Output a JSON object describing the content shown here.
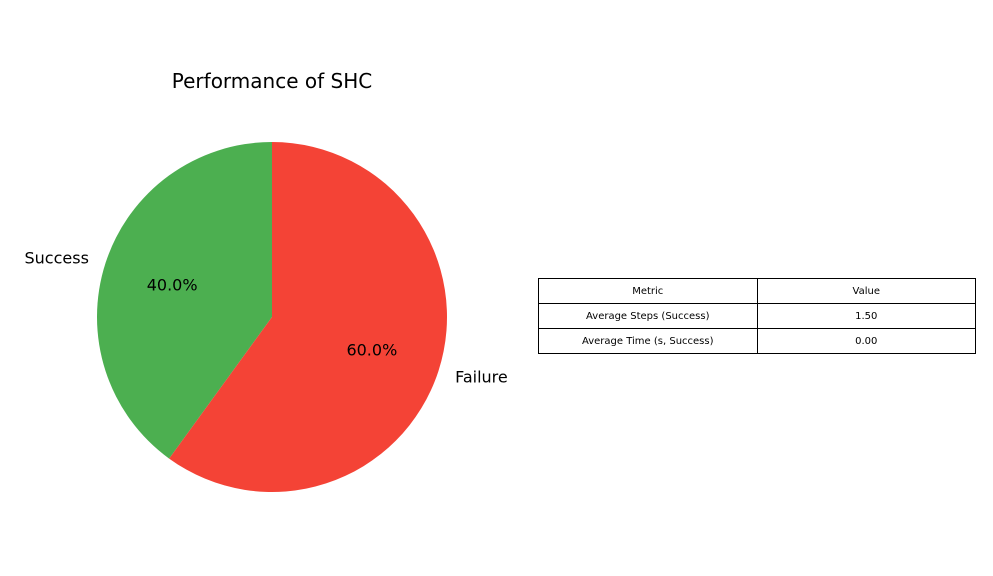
{
  "chart_data": {
    "type": "pie",
    "title": "Performance of SHC",
    "labels": [
      "Success",
      "Failure"
    ],
    "values": [
      40.0,
      60.0
    ],
    "percent_labels": [
      "40.0%",
      "60.0%"
    ],
    "colors": [
      "#4caf50",
      "#f44336"
    ],
    "start_angle_deg": 90
  },
  "table": {
    "header": [
      "Metric",
      "Value"
    ],
    "rows": [
      [
        "Average Steps (Success)",
        "1.50"
      ],
      [
        "Average Time (s, Success)",
        "0.00"
      ]
    ]
  }
}
